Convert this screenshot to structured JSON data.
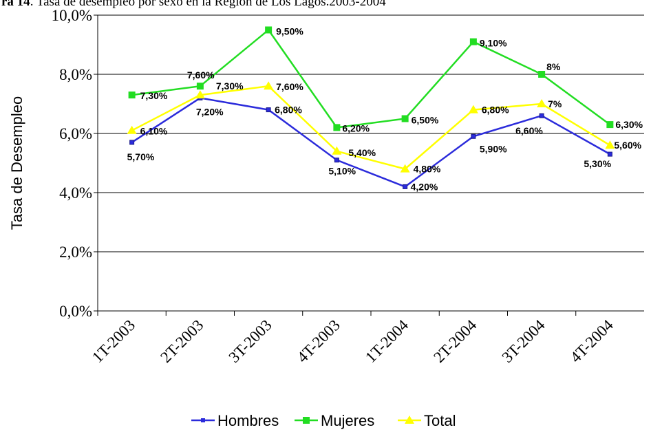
{
  "chart_data": {
    "type": "line",
    "title_prefix": "ra 14",
    "title": ". Tasa de desempleo por sexo en la Región de Los Lagos.2003-2004",
    "y_label": "Tasa de Desempleo",
    "categories": [
      "1T-2003",
      "2T-2003",
      "3T-2003",
      "4T-2003",
      "1T-2004",
      "2T-2004",
      "3T-2004",
      "4T-2004"
    ],
    "series": [
      {
        "name": "Hombres",
        "color": "#2b2bdb",
        "marker": "square",
        "values": [
          5.7,
          7.2,
          6.8,
          5.1,
          4.2,
          5.9,
          6.6,
          5.3
        ],
        "value_labels": [
          "5,70%",
          "7,20%",
          "6,80%",
          "5,10%",
          "4,20%",
          "5,90%",
          "6,60%",
          "5,30%"
        ]
      },
      {
        "name": "Mujeres",
        "color": "#22dd22",
        "marker": "square",
        "values": [
          7.3,
          7.6,
          9.5,
          6.2,
          6.5,
          9.1,
          8,
          6.3
        ],
        "value_labels": [
          "7,30%",
          "7,60%",
          "9,50%",
          "6,20%",
          "6,50%",
          "9,10%",
          "8%",
          "6,30%"
        ]
      },
      {
        "name": "Total",
        "color": "#ffff00",
        "marker": "triangle",
        "values": [
          6.1,
          7.3,
          7.6,
          5.4,
          4.8,
          6.8,
          7,
          5.6
        ],
        "value_labels": [
          "6,10%",
          "7,30%",
          "7,60%",
          "5,40%",
          "4,80%",
          "6,80%",
          "7%",
          "5,60%"
        ]
      }
    ],
    "ylim": [
      0,
      10
    ],
    "yticks": [
      {
        "value": 0,
        "label": "0,0%"
      },
      {
        "value": 2,
        "label": "2,0%"
      },
      {
        "value": 4,
        "label": "4,0%"
      },
      {
        "value": 6,
        "label": "6,0%"
      },
      {
        "value": 8,
        "label": "8,0%"
      },
      {
        "value": 10,
        "label": "10,0%"
      }
    ],
    "grid": true
  }
}
